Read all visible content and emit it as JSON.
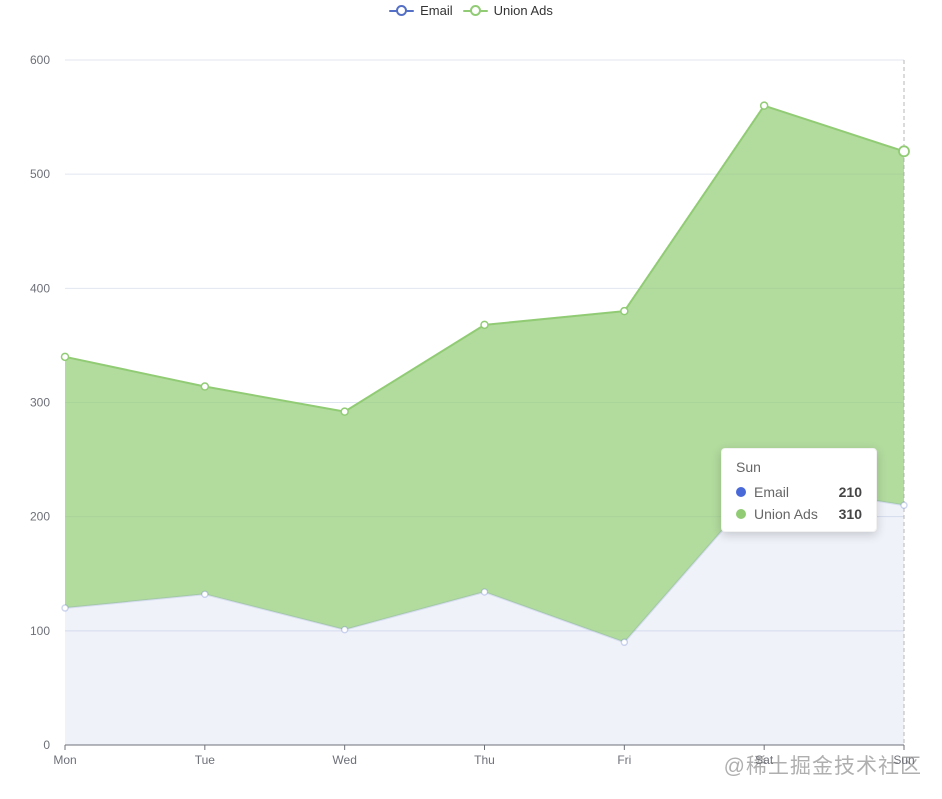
{
  "legend": {
    "items": [
      {
        "id": "email",
        "label": "Email",
        "color": "#5470c6"
      },
      {
        "id": "union-ads",
        "label": "Union Ads",
        "color": "#91cc75"
      }
    ]
  },
  "chart_data": {
    "type": "area",
    "stacked": true,
    "title": "",
    "xlabel": "",
    "ylabel": "",
    "categories": [
      "Mon",
      "Tue",
      "Wed",
      "Thu",
      "Fri",
      "Sat",
      "Sun"
    ],
    "series": [
      {
        "name": "Email",
        "color": "#5470c6",
        "values": [
          120,
          132,
          101,
          134,
          90,
          230,
          210
        ]
      },
      {
        "name": "Union Ads",
        "color": "#91cc75",
        "values": [
          220,
          182,
          191,
          234,
          290,
          330,
          310
        ]
      }
    ],
    "stacked_totals": [
      340,
      314,
      292,
      368,
      380,
      560,
      520
    ],
    "ylim": [
      0,
      600
    ],
    "y_ticks": [
      0,
      100,
      200,
      300,
      400,
      500,
      600
    ],
    "grid": true,
    "legend_position": "top-center",
    "highlighted_category": "Sun",
    "axis_pointer": "dashed-vertical-line-at-Sun"
  },
  "tooltip": {
    "title": "Sun",
    "rows": [
      {
        "name": "Email",
        "value": "210",
        "color": "#4a69d9"
      },
      {
        "name": "Union Ads",
        "value": "310",
        "color": "#91cc75"
      }
    ]
  },
  "watermark": "@稀土掘金技术社区",
  "colors": {
    "email_line": "rgba(84,112,198,0.16)",
    "email_fill": "rgba(84,112,198,0.09)",
    "union_line": "#91cc75",
    "union_fill": "rgba(145,204,117,0.7)",
    "gridline": "#E0E6F1",
    "axis_line": "#6E7079",
    "axis_label": "#6E7079",
    "axis_pointer": "#a6a6a6"
  }
}
